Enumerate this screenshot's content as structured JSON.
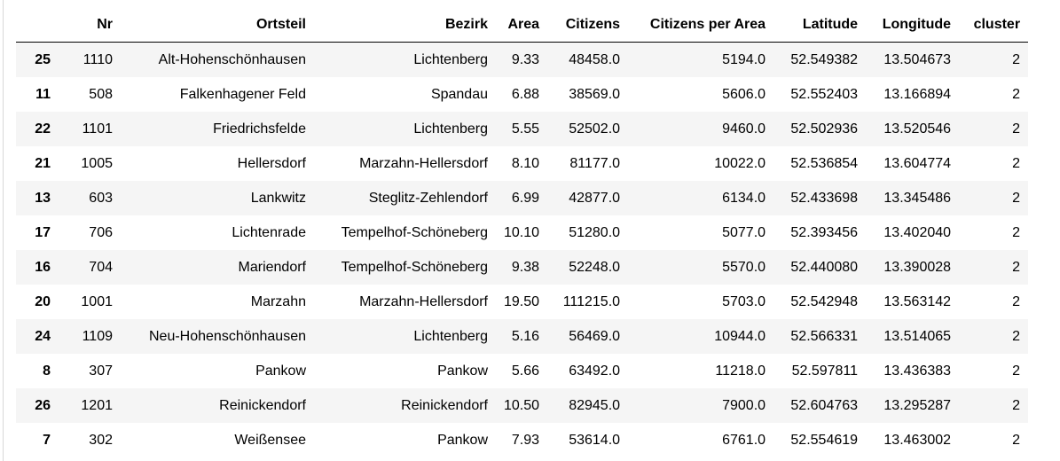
{
  "table": {
    "columns": [
      "",
      "Nr",
      "Ortsteil",
      "Bezirk",
      "Area",
      "Citizens",
      "Citizens per Area",
      "Latitude",
      "Longitude",
      "cluster"
    ],
    "rows": [
      {
        "index": "25",
        "nr": "1110",
        "ortsteil": "Alt-Hohenschönhausen",
        "bezirk": "Lichtenberg",
        "area": "9.33",
        "citizens": "48458.0",
        "cpa": "5194.0",
        "lat": "52.549382",
        "lon": "13.504673",
        "cluster": "2"
      },
      {
        "index": "11",
        "nr": "508",
        "ortsteil": "Falkenhagener Feld",
        "bezirk": "Spandau",
        "area": "6.88",
        "citizens": "38569.0",
        "cpa": "5606.0",
        "lat": "52.552403",
        "lon": "13.166894",
        "cluster": "2"
      },
      {
        "index": "22",
        "nr": "1101",
        "ortsteil": "Friedrichsfelde",
        "bezirk": "Lichtenberg",
        "area": "5.55",
        "citizens": "52502.0",
        "cpa": "9460.0",
        "lat": "52.502936",
        "lon": "13.520546",
        "cluster": "2"
      },
      {
        "index": "21",
        "nr": "1005",
        "ortsteil": "Hellersdorf",
        "bezirk": "Marzahn-Hellersdorf",
        "area": "8.10",
        "citizens": "81177.0",
        "cpa": "10022.0",
        "lat": "52.536854",
        "lon": "13.604774",
        "cluster": "2"
      },
      {
        "index": "13",
        "nr": "603",
        "ortsteil": "Lankwitz",
        "bezirk": "Steglitz-Zehlendorf",
        "area": "6.99",
        "citizens": "42877.0",
        "cpa": "6134.0",
        "lat": "52.433698",
        "lon": "13.345486",
        "cluster": "2"
      },
      {
        "index": "17",
        "nr": "706",
        "ortsteil": "Lichtenrade",
        "bezirk": "Tempelhof-Schöneberg",
        "area": "10.10",
        "citizens": "51280.0",
        "cpa": "5077.0",
        "lat": "52.393456",
        "lon": "13.402040",
        "cluster": "2"
      },
      {
        "index": "16",
        "nr": "704",
        "ortsteil": "Mariendorf",
        "bezirk": "Tempelhof-Schöneberg",
        "area": "9.38",
        "citizens": "52248.0",
        "cpa": "5570.0",
        "lat": "52.440080",
        "lon": "13.390028",
        "cluster": "2"
      },
      {
        "index": "20",
        "nr": "1001",
        "ortsteil": "Marzahn",
        "bezirk": "Marzahn-Hellersdorf",
        "area": "19.50",
        "citizens": "111215.0",
        "cpa": "5703.0",
        "lat": "52.542948",
        "lon": "13.563142",
        "cluster": "2"
      },
      {
        "index": "24",
        "nr": "1109",
        "ortsteil": "Neu-Hohenschönhausen",
        "bezirk": "Lichtenberg",
        "area": "5.16",
        "citizens": "56469.0",
        "cpa": "10944.0",
        "lat": "52.566331",
        "lon": "13.514065",
        "cluster": "2"
      },
      {
        "index": "8",
        "nr": "307",
        "ortsteil": "Pankow",
        "bezirk": "Pankow",
        "area": "5.66",
        "citizens": "63492.0",
        "cpa": "11218.0",
        "lat": "52.597811",
        "lon": "13.436383",
        "cluster": "2"
      },
      {
        "index": "26",
        "nr": "1201",
        "ortsteil": "Reinickendorf",
        "bezirk": "Reinickendorf",
        "area": "10.50",
        "citizens": "82945.0",
        "cpa": "7900.0",
        "lat": "52.604763",
        "lon": "13.295287",
        "cluster": "2"
      },
      {
        "index": "7",
        "nr": "302",
        "ortsteil": "Weißensee",
        "bezirk": "Pankow",
        "area": "7.93",
        "citizens": "53614.0",
        "cpa": "6761.0",
        "lat": "52.554619",
        "lon": "13.463002",
        "cluster": "2"
      }
    ]
  }
}
